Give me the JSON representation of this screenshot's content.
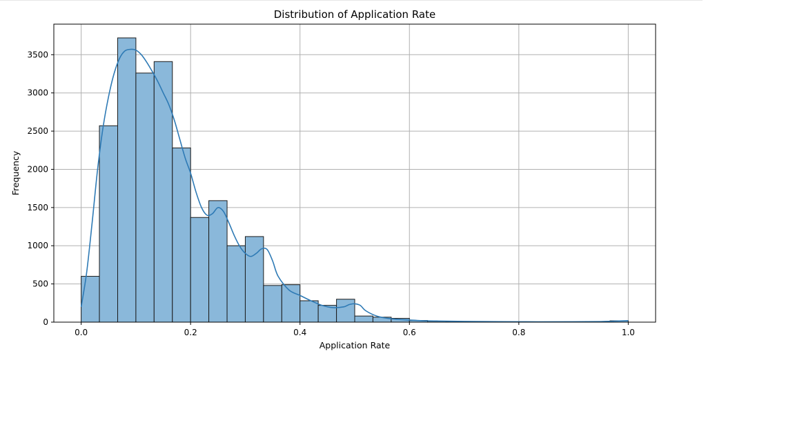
{
  "chart_data": {
    "type": "bar",
    "title": "Distribution of Application Rate",
    "xlabel": "Application Rate",
    "ylabel": "Frequency",
    "xlim": [
      -0.05,
      1.05
    ],
    "ylim": [
      0,
      3900
    ],
    "xticks": [
      "0.0",
      "0.2",
      "0.4",
      "0.6",
      "0.8",
      "1.0"
    ],
    "yticks": [
      "0",
      "500",
      "1000",
      "1500",
      "2000",
      "2500",
      "3000",
      "3500"
    ],
    "grid": true,
    "bin_edges": [
      0,
      0.0333,
      0.0667,
      0.1,
      0.1333,
      0.1667,
      0.2,
      0.2333,
      0.2667,
      0.3,
      0.3333,
      0.3667,
      0.4,
      0.4333,
      0.4667,
      0.5,
      0.5333,
      0.5667,
      0.6,
      0.6333,
      0.6667,
      0.7,
      0.7333,
      0.7667,
      0.8,
      0.8333,
      0.8667,
      0.9,
      0.9333,
      0.9667,
      1.0
    ],
    "values": [
      600,
      2570,
      3720,
      3260,
      3410,
      2280,
      1370,
      1590,
      1000,
      1120,
      480,
      490,
      280,
      220,
      300,
      80,
      65,
      50,
      22,
      12,
      8,
      6,
      5,
      3,
      2,
      2,
      1,
      1,
      1,
      18
    ],
    "kde": {
      "x": [
        0,
        0.01,
        0.02,
        0.03,
        0.04,
        0.05,
        0.06,
        0.07,
        0.08,
        0.09,
        0.1,
        0.11,
        0.12,
        0.13,
        0.14,
        0.15,
        0.16,
        0.17,
        0.18,
        0.19,
        0.2,
        0.21,
        0.22,
        0.23,
        0.24,
        0.25,
        0.26,
        0.27,
        0.28,
        0.29,
        0.3,
        0.31,
        0.32,
        0.33,
        0.34,
        0.35,
        0.36,
        0.38,
        0.4,
        0.42,
        0.44,
        0.46,
        0.48,
        0.49,
        0.5,
        0.51,
        0.52,
        0.54,
        0.56,
        0.58,
        0.6,
        0.62,
        0.65,
        0.7,
        0.8,
        0.9,
        0.95,
        0.97,
        1.0
      ],
      "y": [
        200,
        650,
        1300,
        2000,
        2550,
        2950,
        3250,
        3450,
        3550,
        3570,
        3560,
        3500,
        3400,
        3280,
        3150,
        3000,
        2850,
        2650,
        2400,
        2150,
        1950,
        1700,
        1500,
        1400,
        1420,
        1500,
        1450,
        1300,
        1130,
        990,
        900,
        860,
        900,
        960,
        950,
        800,
        600,
        420,
        350,
        280,
        220,
        190,
        200,
        230,
        240,
        220,
        150,
        80,
        50,
        35,
        28,
        20,
        15,
        10,
        5,
        5,
        8,
        12,
        20
      ]
    },
    "colors": {
      "bar_fill": "#8ab8da",
      "bar_edge": "#1a1a1a",
      "kde_line": "#2e7ab5",
      "grid": "#b0b0b0"
    }
  }
}
